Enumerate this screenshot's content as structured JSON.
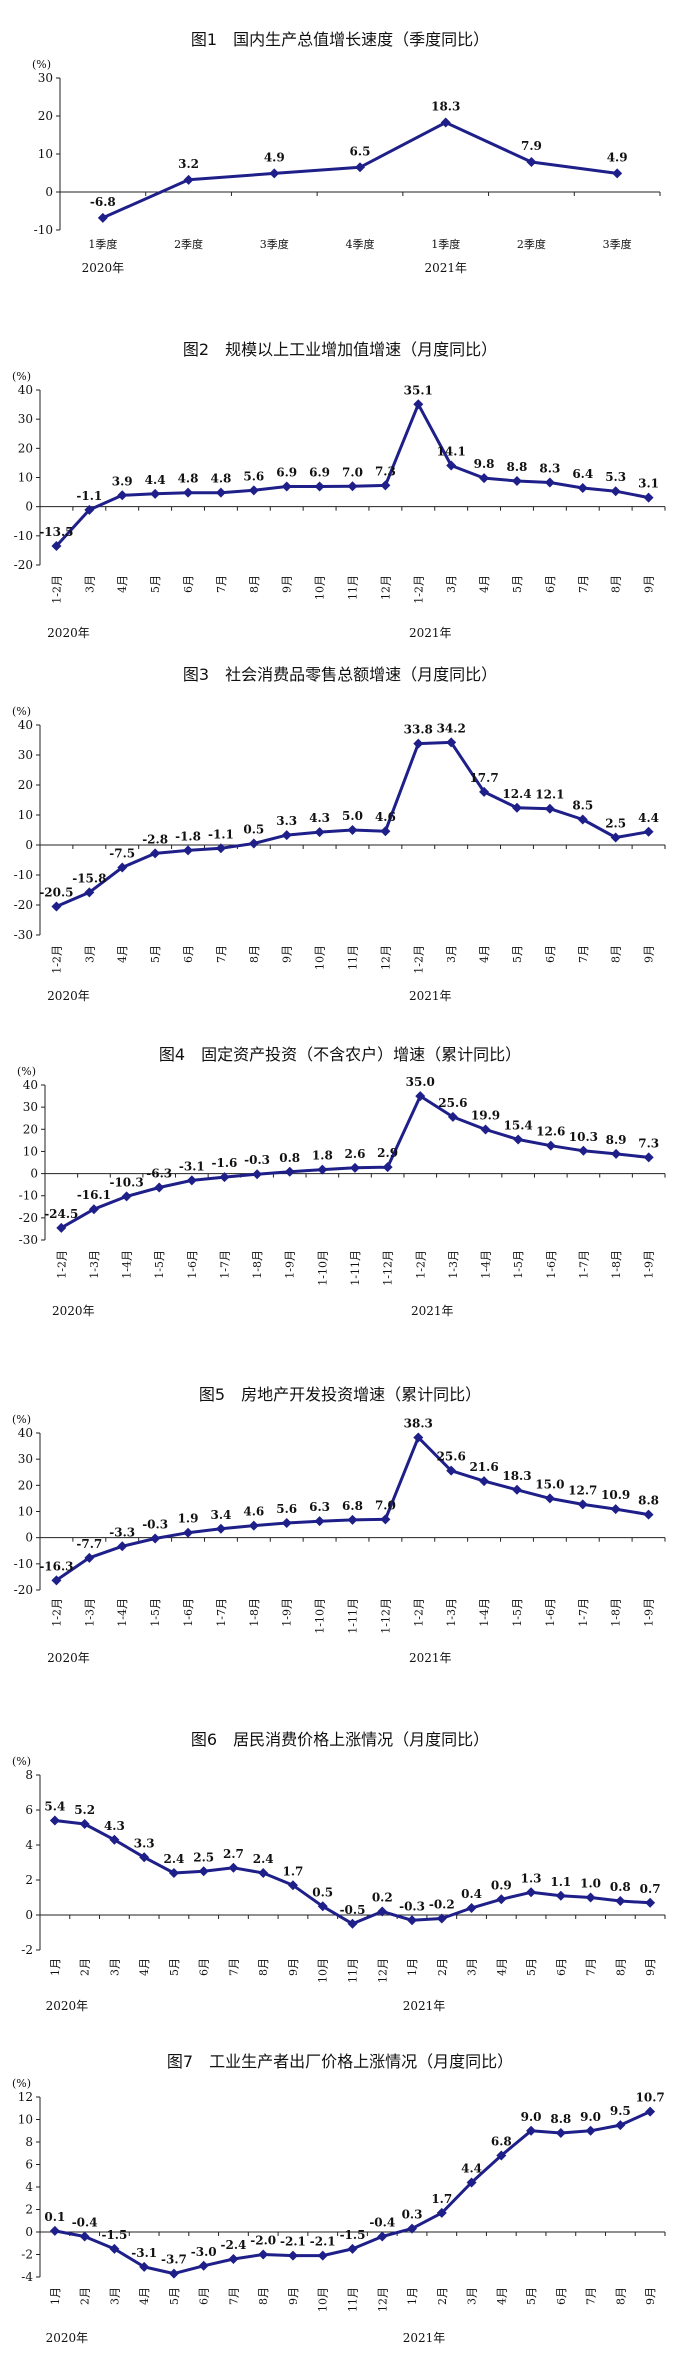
{
  "chart_data": [
    {
      "type": "line",
      "title": "图1　国内生产总值增长速度（季度同比）",
      "unit": "(%)",
      "categories": [
        "1季度",
        "2季度",
        "3季度",
        "4季度",
        "1季度",
        "2季度",
        "3季度"
      ],
      "years": [
        {
          "label": "2020年",
          "index": 0
        },
        {
          "label": "2021年",
          "index": 4
        }
      ],
      "values": [
        -6.8,
        3.2,
        4.9,
        6.5,
        18.3,
        7.9,
        4.9
      ],
      "labels": [
        "-6.8",
        "3.2",
        "4.9",
        "6.5",
        "18.3",
        "7.9",
        "4.9"
      ],
      "ylim": [
        -10,
        30
      ],
      "yticks": [
        -10,
        0,
        10,
        20,
        30
      ],
      "rotate_x": false,
      "marker": "diamond"
    },
    {
      "type": "line",
      "title": "图2　规模以上工业增加值增速（月度同比）",
      "unit": "(%)",
      "categories": [
        "1-2月",
        "3月",
        "4月",
        "5月",
        "6月",
        "7月",
        "8月",
        "9月",
        "10月",
        "11月",
        "12月",
        "1-2月",
        "3月",
        "4月",
        "5月",
        "6月",
        "7月",
        "8月",
        "9月"
      ],
      "years": [
        {
          "label": "2020年",
          "index": 0
        },
        {
          "label": "2021年",
          "index": 11
        }
      ],
      "values": [
        -13.5,
        -1.1,
        3.9,
        4.4,
        4.8,
        4.8,
        5.6,
        6.9,
        6.9,
        7.0,
        7.3,
        35.1,
        14.1,
        9.8,
        8.8,
        8.3,
        6.4,
        5.3,
        3.1
      ],
      "labels": [
        "-13.5",
        "-1.1",
        "3.9",
        "4.4",
        "4.8",
        "4.8",
        "5.6",
        "6.9",
        "6.9",
        "7.0",
        "7.3",
        "35.1",
        "14.1",
        "9.8",
        "8.8",
        "8.3",
        "6.4",
        "5.3",
        "3.1"
      ],
      "ylim": [
        -20,
        40
      ],
      "yticks": [
        -20,
        -10,
        0,
        10,
        20,
        30,
        40
      ],
      "rotate_x": true,
      "marker": "diamond"
    },
    {
      "type": "line",
      "title": "图3　社会消费品零售总额增速（月度同比）",
      "unit": "(%)",
      "categories": [
        "1-2月",
        "3月",
        "4月",
        "5月",
        "6月",
        "7月",
        "8月",
        "9月",
        "10月",
        "11月",
        "12月",
        "1-2月",
        "3月",
        "4月",
        "5月",
        "6月",
        "7月",
        "8月",
        "9月"
      ],
      "years": [
        {
          "label": "2020年",
          "index": 0
        },
        {
          "label": "2021年",
          "index": 11
        }
      ],
      "values": [
        -20.5,
        -15.8,
        -7.5,
        -2.8,
        -1.8,
        -1.1,
        0.5,
        3.3,
        4.3,
        5.0,
        4.6,
        33.8,
        34.2,
        17.7,
        12.4,
        12.1,
        8.5,
        2.5,
        4.4
      ],
      "labels": [
        "-20.5",
        "-15.8",
        "-7.5",
        "-2.8",
        "-1.8",
        "-1.1",
        "0.5",
        "3.3",
        "4.3",
        "5.0",
        "4.6",
        "33.8",
        "34.2",
        "17.7",
        "12.4",
        "12.1",
        "8.5",
        "2.5",
        "4.4"
      ],
      "ylim": [
        -30,
        40
      ],
      "yticks": [
        -30,
        -20,
        -10,
        0,
        10,
        20,
        30,
        40
      ],
      "rotate_x": true,
      "marker": "diamond"
    },
    {
      "type": "line",
      "title": "图4　固定资产投资（不含农户）增速（累计同比）",
      "unit": "(%)",
      "categories": [
        "1-2月",
        "1-3月",
        "1-4月",
        "1-5月",
        "1-6月",
        "1-7月",
        "1-8月",
        "1-9月",
        "1-10月",
        "1-11月",
        "1-12月",
        "1-2月",
        "1-3月",
        "1-4月",
        "1-5月",
        "1-6月",
        "1-7月",
        "1-8月",
        "1-9月"
      ],
      "years": [
        {
          "label": "2020年",
          "index": 0
        },
        {
          "label": "2021年",
          "index": 11
        }
      ],
      "values": [
        -24.5,
        -16.1,
        -10.3,
        -6.3,
        -3.1,
        -1.6,
        -0.3,
        0.8,
        1.8,
        2.6,
        2.9,
        35.0,
        25.6,
        19.9,
        15.4,
        12.6,
        10.3,
        8.9,
        7.3
      ],
      "labels": [
        "-24.5",
        "-16.1",
        "-10.3",
        "-6.3",
        "-3.1",
        "-1.6",
        "-0.3",
        "0.8",
        "1.8",
        "2.6",
        "2.9",
        "35.0",
        "25.6",
        "19.9",
        "15.4",
        "12.6",
        "10.3",
        "8.9",
        "7.3"
      ],
      "ylim": [
        -30,
        40
      ],
      "yticks": [
        -30,
        -20,
        -10,
        0,
        10,
        20,
        30,
        40
      ],
      "rotate_x": true,
      "marker": "diamond"
    },
    {
      "type": "line",
      "title": "图5　房地产开发投资增速（累计同比）",
      "unit": "(%)",
      "categories": [
        "1-2月",
        "1-3月",
        "1-4月",
        "1-5月",
        "1-6月",
        "1-7月",
        "1-8月",
        "1-9月",
        "1-10月",
        "1-11月",
        "1-12月",
        "1-2月",
        "1-3月",
        "1-4月",
        "1-5月",
        "1-6月",
        "1-7月",
        "1-8月",
        "1-9月"
      ],
      "years": [
        {
          "label": "2020年",
          "index": 0
        },
        {
          "label": "2021年",
          "index": 11
        }
      ],
      "values": [
        -16.3,
        -7.7,
        -3.3,
        -0.3,
        1.9,
        3.4,
        4.6,
        5.6,
        6.3,
        6.8,
        7.0,
        38.3,
        25.6,
        21.6,
        18.3,
        15.0,
        12.7,
        10.9,
        8.8
      ],
      "labels": [
        "-16.3",
        "-7.7",
        "-3.3",
        "-0.3",
        "1.9",
        "3.4",
        "4.6",
        "5.6",
        "6.3",
        "6.8",
        "7.0",
        "38.3",
        "25.6",
        "21.6",
        "18.3",
        "15.0",
        "12.7",
        "10.9",
        "8.8"
      ],
      "ylim": [
        -20,
        40
      ],
      "yticks": [
        -20,
        -10,
        0,
        10,
        20,
        30,
        40
      ],
      "rotate_x": true,
      "marker": "diamond"
    },
    {
      "type": "line",
      "title": "图6　居民消费价格上涨情况（月度同比）",
      "unit": "(%)",
      "categories": [
        "1月",
        "2月",
        "3月",
        "4月",
        "5月",
        "6月",
        "7月",
        "8月",
        "9月",
        "10月",
        "11月",
        "12月",
        "1月",
        "2月",
        "3月",
        "4月",
        "5月",
        "6月",
        "7月",
        "8月",
        "9月"
      ],
      "years": [
        {
          "label": "2020年",
          "index": 0
        },
        {
          "label": "2021年",
          "index": 12
        }
      ],
      "values": [
        5.4,
        5.2,
        4.3,
        3.3,
        2.4,
        2.5,
        2.7,
        2.4,
        1.7,
        0.5,
        -0.5,
        0.2,
        -0.3,
        -0.2,
        0.4,
        0.9,
        1.3,
        1.1,
        1.0,
        0.8,
        0.7
      ],
      "labels": [
        "5.4",
        "5.2",
        "4.3",
        "3.3",
        "2.4",
        "2.5",
        "2.7",
        "2.4",
        "1.7",
        "0.5",
        "-0.5",
        "0.2",
        "-0.3",
        "-0.2",
        "0.4",
        "0.9",
        "1.3",
        "1.1",
        "1.0",
        "0.8",
        "0.7"
      ],
      "ylim": [
        -2,
        8
      ],
      "yticks": [
        -2,
        0,
        2,
        4,
        6,
        8
      ],
      "rotate_x": true,
      "marker": "diamond"
    },
    {
      "type": "line",
      "title": "图7　工业生产者出厂价格上涨情况（月度同比）",
      "unit": "(%)",
      "categories": [
        "1月",
        "2月",
        "3月",
        "4月",
        "5月",
        "6月",
        "7月",
        "8月",
        "9月",
        "10月",
        "11月",
        "12月",
        "1月",
        "2月",
        "3月",
        "4月",
        "5月",
        "6月",
        "7月",
        "8月",
        "9月"
      ],
      "years": [
        {
          "label": "2020年",
          "index": 0
        },
        {
          "label": "2021年",
          "index": 12
        }
      ],
      "values": [
        0.1,
        -0.4,
        -1.5,
        -3.1,
        -3.7,
        -3.0,
        -2.4,
        -2.0,
        -2.1,
        -2.1,
        -1.5,
        -0.4,
        0.3,
        1.7,
        4.4,
        6.8,
        9.0,
        8.8,
        9.0,
        9.5,
        10.7
      ],
      "labels": [
        "0.1",
        "-0.4",
        "-1.5",
        "-3.1",
        "-3.7",
        "-3.0",
        "-2.4",
        "-2.0",
        "-2.1",
        "-2.1",
        "-1.5",
        "-0.4",
        "0.3",
        "1.7",
        "4.4",
        "6.8",
        "9.0",
        "8.8",
        "9.0",
        "9.5",
        "10.7"
      ],
      "ylim": [
        -4,
        12
      ],
      "yticks": [
        -4,
        -2,
        0,
        2,
        4,
        6,
        8,
        10,
        12
      ],
      "rotate_x": true,
      "marker": "diamond"
    }
  ],
  "colors": {
    "series": "#1f1f8a",
    "axis": "#222222",
    "text": "#111111"
  }
}
